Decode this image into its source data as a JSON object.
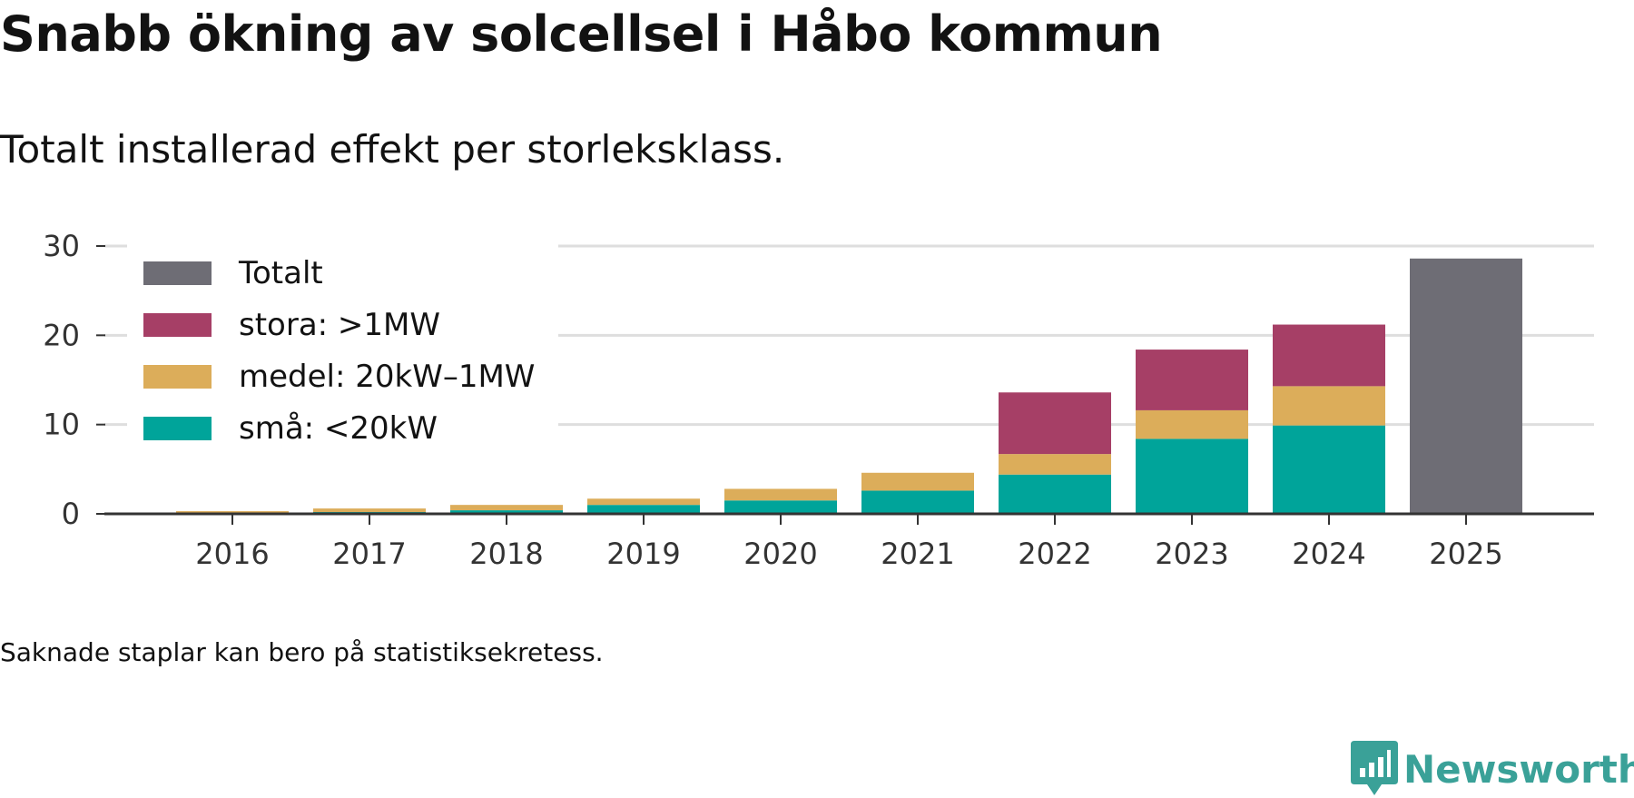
{
  "title": "Snabb ökning av solcellsel i Håbo kommun",
  "subtitle": "Totalt installerad effekt per storleksklass.",
  "note": "Saknade staplar kan bero på statistiksekretess.",
  "brand": {
    "name": "Newsworthy",
    "icon": "newsworthy-logo-icon"
  },
  "colors": {
    "small": "#00a49a",
    "medium": "#dcad5a",
    "large": "#a63f66",
    "total": "#6e6d75",
    "grid": "#dedede",
    "axis": "#333333"
  },
  "chart_data": {
    "type": "bar",
    "stacked": true,
    "categories": [
      "2016",
      "2017",
      "2018",
      "2019",
      "2020",
      "2021",
      "2022",
      "2023",
      "2024",
      "2025"
    ],
    "series": [
      {
        "key": "small",
        "name": "små: <20kW",
        "values": [
          0.1,
          0.2,
          0.4,
          1.0,
          1.5,
          2.6,
          4.4,
          8.4,
          9.9,
          0
        ]
      },
      {
        "key": "medium",
        "name": "medel: 20kW–1MW",
        "values": [
          0.2,
          0.4,
          0.6,
          0.7,
          1.3,
          2.0,
          2.3,
          3.2,
          4.4,
          0
        ]
      },
      {
        "key": "large",
        "name": "stora: >1MW",
        "values": [
          0,
          0,
          0,
          0,
          0,
          0,
          6.9,
          6.8,
          6.9,
          0
        ]
      },
      {
        "key": "total",
        "name": "Totalt",
        "values": [
          0,
          0,
          0,
          0,
          0,
          0,
          0,
          0,
          0,
          28.6
        ]
      }
    ],
    "legend_order": [
      "total",
      "large",
      "medium",
      "small"
    ],
    "yticks": [
      0,
      10,
      20,
      30
    ],
    "ylim": [
      0,
      30
    ],
    "xlabel": "",
    "ylabel": "",
    "legend_position": "top-left"
  }
}
